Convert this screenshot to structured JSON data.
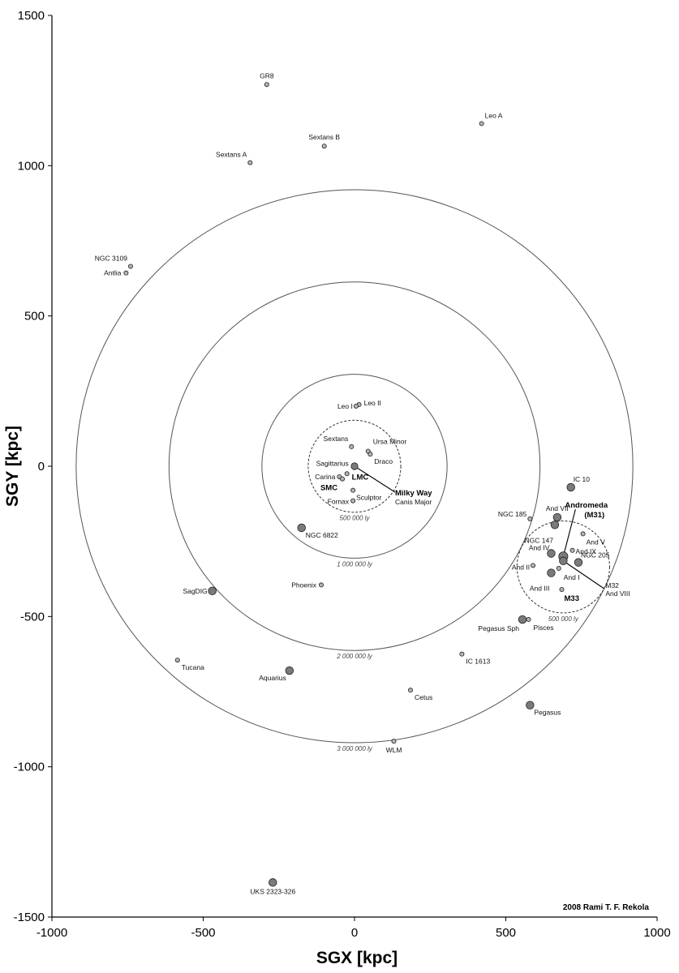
{
  "chart_data": {
    "type": "scatter",
    "xlabel": "SGX  [kpc]",
    "ylabel": "SGY  [kpc]",
    "xlim": [
      -1000,
      1000
    ],
    "ylim": [
      -1500,
      1500
    ],
    "xticks": [
      -1000,
      -500,
      0,
      500,
      1000
    ],
    "yticks": [
      -1500,
      -1000,
      -500,
      0,
      500,
      1000,
      1500
    ],
    "xtick_labels": [
      "-1000",
      "-500",
      "0",
      "500",
      "1000"
    ],
    "ytick_labels": [
      "-1500",
      "-1000",
      "-500",
      "0",
      "500",
      "1000",
      "1500"
    ],
    "grid": false,
    "credit": "2008  Rami T. F. Rekola",
    "colors": {
      "dwarf_fill": "#b4b4b4",
      "large_fill": "#7a7a7a",
      "ring": "#555555",
      "axis": "#000000"
    },
    "rings": [
      {
        "center": [
          0,
          0
        ],
        "radius_kpc": 153,
        "style": "dashed",
        "label": "500 000 ly"
      },
      {
        "center": [
          0,
          0
        ],
        "radius_kpc": 306,
        "style": "solid",
        "label": "1 000 000 ly"
      },
      {
        "center": [
          0,
          0
        ],
        "radius_kpc": 613,
        "style": "solid",
        "label": "2 000 000 ly"
      },
      {
        "center": [
          0,
          0
        ],
        "radius_kpc": 920,
        "style": "solid",
        "label": "3 000 000 ly"
      },
      {
        "center": [
          690,
          -335
        ],
        "radius_kpc": 153,
        "style": "dashed",
        "label": "500 000 ly"
      }
    ],
    "points": [
      {
        "name": "GR8",
        "x": -290,
        "y": 1270,
        "size": "s",
        "label_pos": "above",
        "bold": false
      },
      {
        "name": "Leo A",
        "x": 420,
        "y": 1140,
        "size": "s",
        "label_pos": "above-right",
        "bold": false
      },
      {
        "name": "Sextans B",
        "x": -100,
        "y": 1065,
        "size": "s",
        "label_pos": "above",
        "bold": false
      },
      {
        "name": "Sextans A",
        "x": -345,
        "y": 1010,
        "size": "s",
        "label_pos": "above-left",
        "bold": false
      },
      {
        "name": "NGC 3109",
        "x": -740,
        "y": 665,
        "size": "s",
        "label_pos": "above-left",
        "bold": false
      },
      {
        "name": "Antlia",
        "x": -755,
        "y": 643,
        "size": "s",
        "label_pos": "left",
        "bold": false
      },
      {
        "name": "Leo II",
        "x": 15,
        "y": 205,
        "size": "s",
        "label_pos": "right",
        "bold": false
      },
      {
        "name": "Leo I",
        "x": 5,
        "y": 200,
        "size": "s",
        "label_pos": "left",
        "bold": false
      },
      {
        "name": "Sextans",
        "x": -10,
        "y": 65,
        "size": "s",
        "label_pos": "above-left",
        "bold": false
      },
      {
        "name": "Ursa Minor",
        "x": 45,
        "y": 50,
        "size": "s",
        "label_pos": "above-right",
        "bold": false
      },
      {
        "name": "Draco",
        "x": 52,
        "y": 40,
        "size": "s",
        "label_pos": "below-right",
        "bold": false
      },
      {
        "name": "Sagittarius",
        "x": 2,
        "y": 2,
        "size": "s",
        "label_pos": "left",
        "bold": false
      },
      {
        "name": "Carina",
        "x": -50,
        "y": -35,
        "size": "s",
        "label_pos": "left",
        "bold": false
      },
      {
        "name": "LMC",
        "x": -25,
        "y": -25,
        "size": "s",
        "label_pos": "right",
        "bold": true
      },
      {
        "name": "SMC",
        "x": -40,
        "y": -42,
        "size": "s",
        "label_pos": "below-left",
        "bold": true
      },
      {
        "name": "Sculptor",
        "x": -5,
        "y": -80,
        "size": "s",
        "label_pos": "below-right",
        "bold": false
      },
      {
        "name": "Fornax",
        "x": -5,
        "y": -115,
        "size": "s",
        "label_pos": "left",
        "bold": false
      },
      {
        "name": "NGC 6822",
        "x": -175,
        "y": -205,
        "size": "m",
        "label_pos": "below-right",
        "bold": false
      },
      {
        "name": "Phoenix",
        "x": -110,
        "y": -395,
        "size": "s",
        "label_pos": "left",
        "bold": false
      },
      {
        "name": "SagDIG",
        "x": -470,
        "y": -415,
        "size": "m",
        "label_pos": "left",
        "bold": false
      },
      {
        "name": "Tucana",
        "x": -585,
        "y": -645,
        "size": "s",
        "label_pos": "below-right",
        "bold": false
      },
      {
        "name": "Aquarius",
        "x": -215,
        "y": -680,
        "size": "m",
        "label_pos": "below-left",
        "bold": false
      },
      {
        "name": "Cetus",
        "x": 185,
        "y": -745,
        "size": "s",
        "label_pos": "below-right",
        "bold": false
      },
      {
        "name": "WLM",
        "x": 130,
        "y": -915,
        "size": "s",
        "label_pos": "below",
        "bold": false
      },
      {
        "name": "IC 1613",
        "x": 355,
        "y": -625,
        "size": "s",
        "label_pos": "below-right",
        "bold": false
      },
      {
        "name": "Pegasus",
        "x": 580,
        "y": -795,
        "size": "m",
        "label_pos": "below-right",
        "bold": false
      },
      {
        "name": "Pegasus Sph",
        "x": 555,
        "y": -510,
        "size": "m",
        "label_pos": "below-left",
        "bold": false
      },
      {
        "name": "Pisces",
        "x": 575,
        "y": -510,
        "size": "s",
        "label_pos": "below-right",
        "bold": false
      },
      {
        "name": "UKS 2323-326",
        "x": -270,
        "y": -1385,
        "size": "m",
        "label_pos": "below",
        "bold": false
      },
      {
        "name": "IC 10",
        "x": 715,
        "y": -70,
        "size": "m",
        "label_pos": "above-right",
        "bold": false
      },
      {
        "name": "NGC 185",
        "x": 580,
        "y": -175,
        "size": "s",
        "label_pos": "above-left",
        "bold": false
      },
      {
        "name": "And VII",
        "x": 670,
        "y": -170,
        "size": "m",
        "label_pos": "above-right",
        "bold": false
      },
      {
        "name": "NGC 147",
        "x": 662,
        "y": -195,
        "size": "m",
        "label_pos": "below-left",
        "bold": false
      },
      {
        "name": "And V",
        "x": 755,
        "y": -225,
        "size": "s",
        "label_pos": "below-right",
        "bold": false
      },
      {
        "name": "And IV",
        "x": 650,
        "y": -290,
        "size": "m",
        "label_pos": "above-left",
        "bold": false
      },
      {
        "name": "And IX",
        "x": 720,
        "y": -280,
        "size": "s",
        "label_pos": "right",
        "bold": false
      },
      {
        "name": "NGC 205",
        "x": 740,
        "y": -320,
        "size": "m",
        "label_pos": "right",
        "bold": false
      },
      {
        "name": "And II",
        "x": 590,
        "y": -330,
        "size": "s",
        "label_pos": "left",
        "bold": false
      },
      {
        "name": "And I",
        "x": 675,
        "y": -340,
        "size": "s",
        "label_pos": "below-right",
        "bold": false
      },
      {
        "name": "And III",
        "x": 650,
        "y": -355,
        "size": "m",
        "label_pos": "below-left",
        "bold": false
      },
      {
        "name": "M33",
        "x": 685,
        "y": -410,
        "size": "s",
        "label_pos": "below-right",
        "bold": true
      },
      {
        "name": "Milky Way",
        "x": 0,
        "y": 0,
        "size": "c",
        "label_pos": "leader",
        "bold": true
      },
      {
        "name": "Canis Major",
        "x": 0,
        "y": 0,
        "size": "none",
        "label_pos": "leader",
        "bold": false
      },
      {
        "name": "Andromeda",
        "x": 690,
        "y": -300,
        "size": "l",
        "label_pos": "leader",
        "bold": true
      },
      {
        "name": "(M31)",
        "x": 690,
        "y": -300,
        "size": "none",
        "label_pos": "leader",
        "bold": true
      },
      {
        "name": "M32",
        "x": 690,
        "y": -315,
        "size": "m",
        "label_pos": "leader",
        "bold": false
      },
      {
        "name": "And VIII",
        "x": 690,
        "y": -315,
        "size": "none",
        "label_pos": "leader",
        "bold": false
      }
    ]
  }
}
